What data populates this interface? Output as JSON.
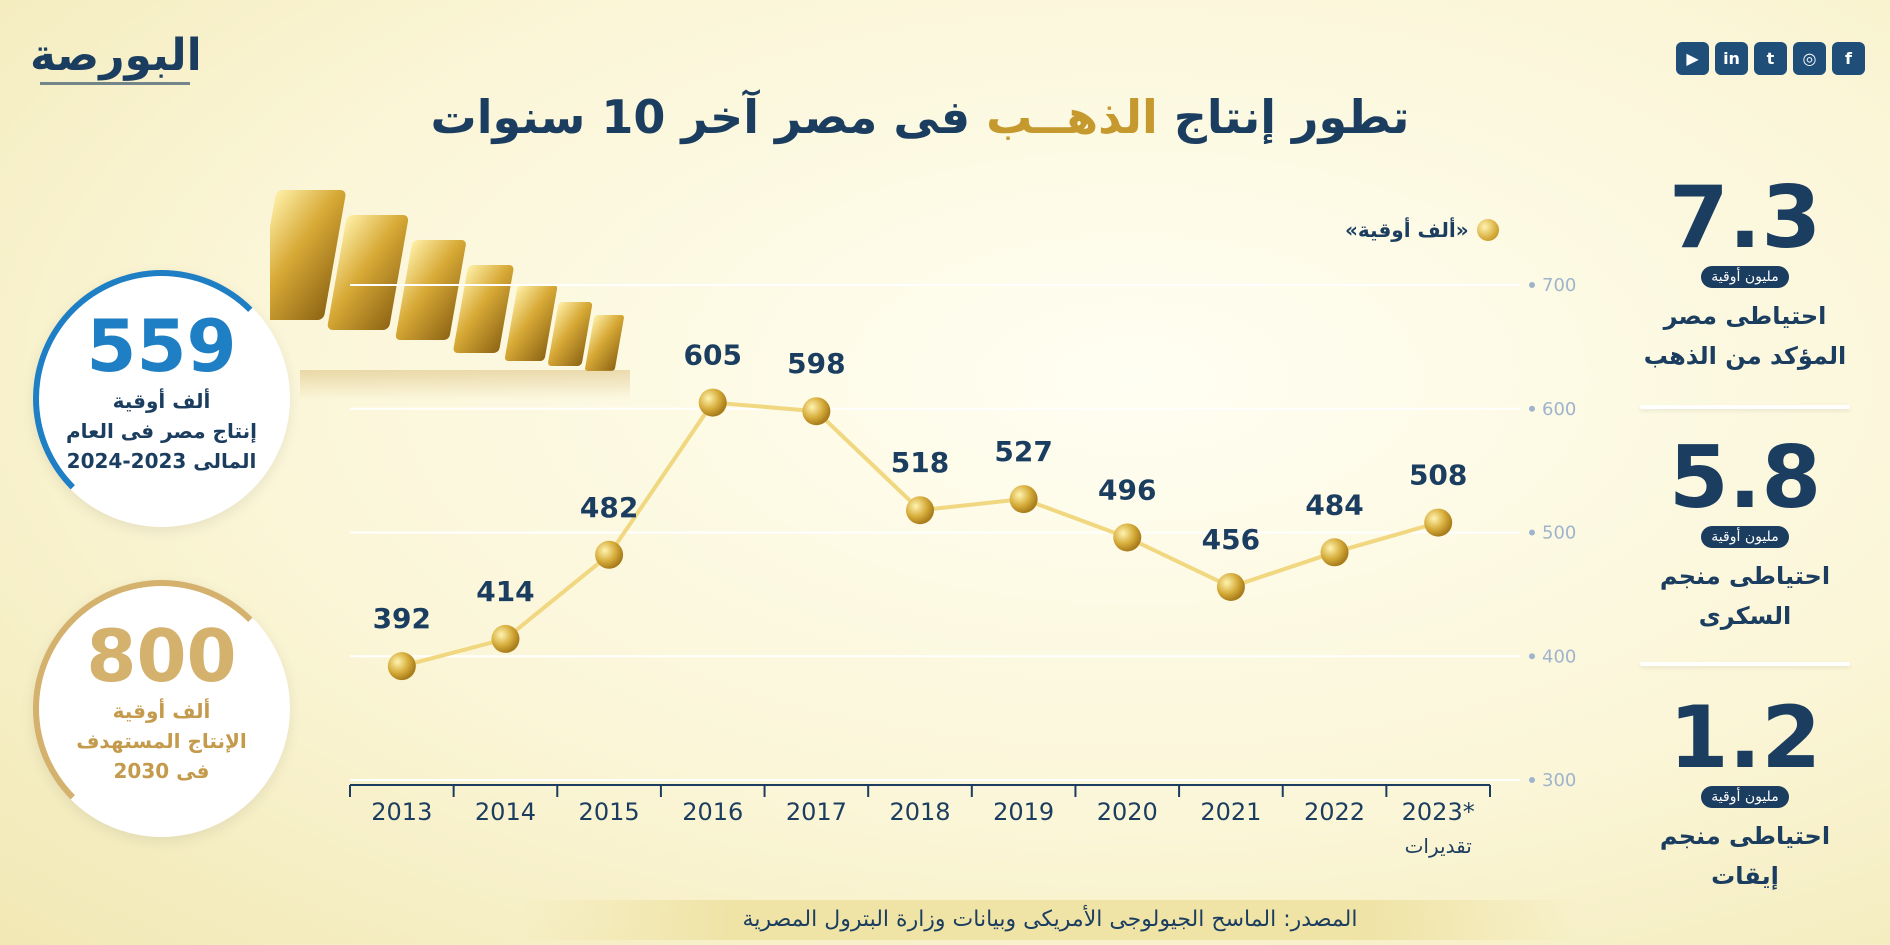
{
  "brand": {
    "logo_text": "البورصة"
  },
  "socials": [
    {
      "name": "youtube-icon",
      "glyph": "▶"
    },
    {
      "name": "linkedin-icon",
      "glyph": "in"
    },
    {
      "name": "twitter-icon",
      "glyph": "t"
    },
    {
      "name": "instagram-icon",
      "glyph": "◎"
    },
    {
      "name": "facebook-icon",
      "glyph": "f"
    }
  ],
  "title": {
    "part1": "تطور إنتاج",
    "highlight": "الذهــب",
    "part2": "فى مصر آخر 10 سنوات"
  },
  "legend": {
    "label": "«ألف أوقية»"
  },
  "left_bubbles": {
    "production": {
      "value": "559",
      "unit": "ألف أوقية",
      "line1": "إنتاج مصر فى العام",
      "line2": "المالى 2023-2024"
    },
    "target": {
      "value": "800",
      "unit": "ألف أوقية",
      "line1": "الإنتاج المستهدف",
      "line2": "فى 2030"
    }
  },
  "right_stats": [
    {
      "value": "7.3",
      "unit": "مليون أوقية",
      "line1": "احتياطى مصر",
      "line2": "المؤكد من الذهب"
    },
    {
      "value": "5.8",
      "unit": "مليون أوقية",
      "line1": "احتياطى منجم",
      "line2": "السكرى"
    },
    {
      "value": "1.2",
      "unit": "مليون أوقية",
      "line1": "احتياطى منجم",
      "line2": "إيقات"
    }
  ],
  "source": "المصدر: الماسح الجيولوجى الأمريكى وبيانات وزارة البترول المصرية",
  "chart_data": {
    "type": "line",
    "categories": [
      "2013",
      "2014",
      "2015",
      "2016",
      "2017",
      "2018",
      "2019",
      "2020",
      "2021",
      "2022",
      "2023*"
    ],
    "x_note": "تقديرات",
    "values": [
      392,
      414,
      482,
      605,
      598,
      518,
      527,
      496,
      456,
      484,
      508
    ],
    "yticks": [
      300,
      400,
      500,
      600,
      700
    ],
    "ylim": [
      300,
      700
    ],
    "series_color": "#f0d780",
    "marker_color": "#d6ad3b",
    "label_color": "#1b3d5f",
    "tick_color": "#9fb4cc"
  }
}
